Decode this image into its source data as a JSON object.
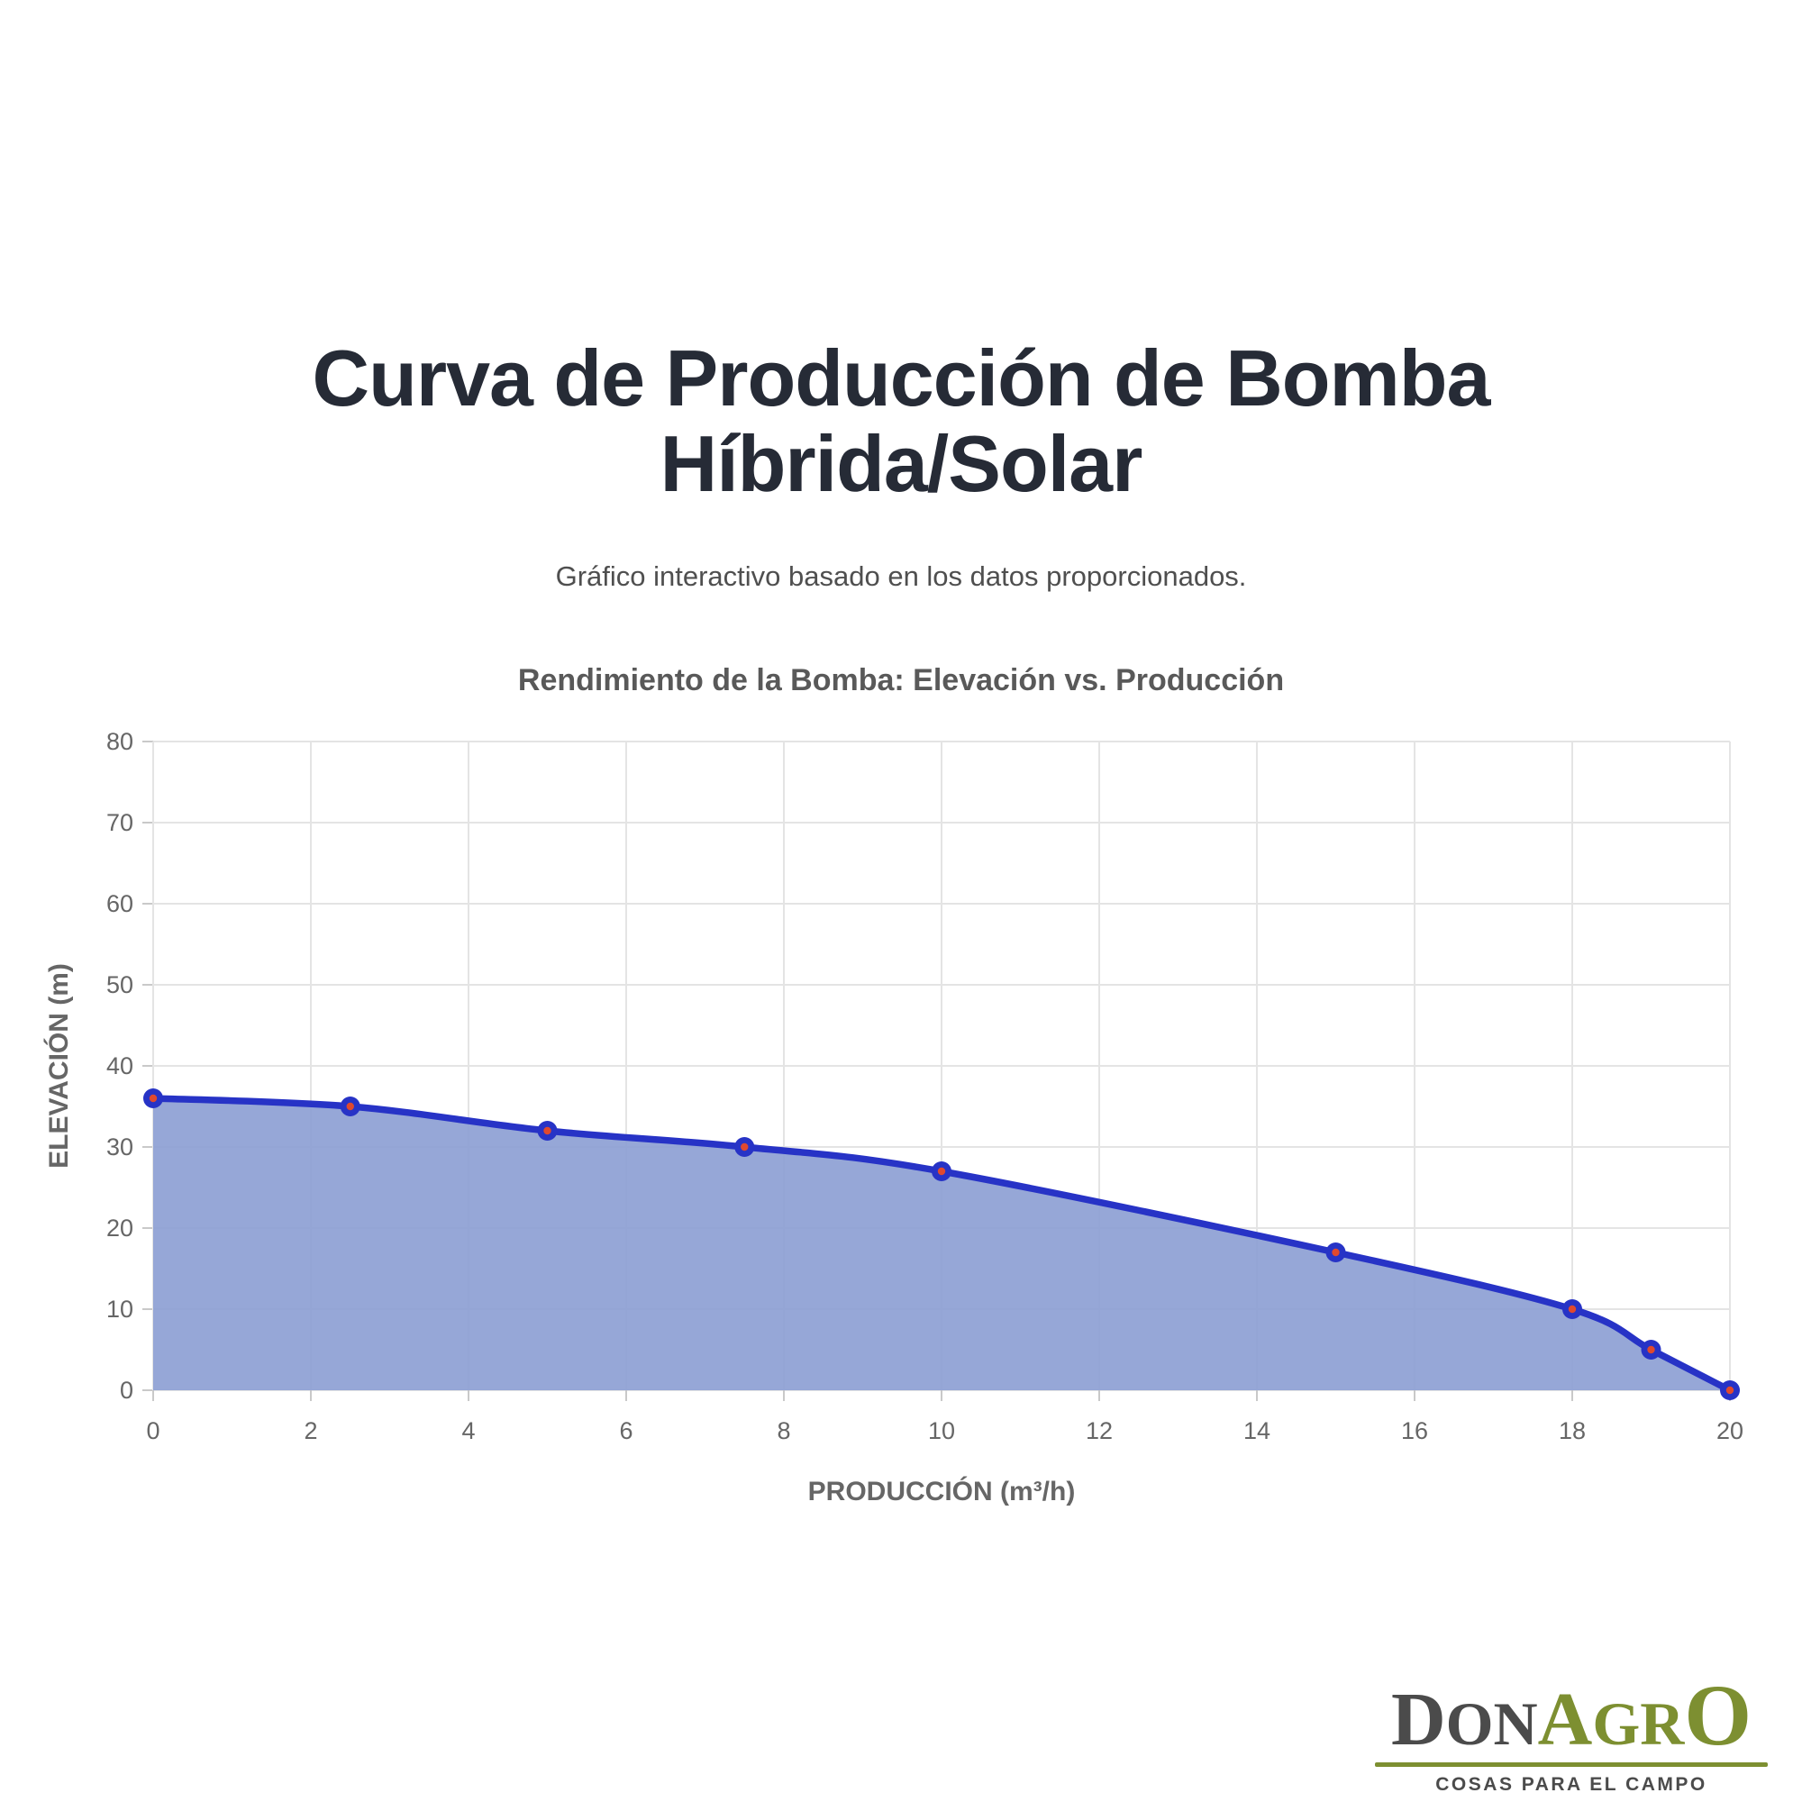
{
  "page": {
    "background": "#ffffff",
    "title_line1": "Curva de Producción de Bomba",
    "title_line2": "Híbrida/Solar",
    "subtitle": "Gráfico interactivo basado en los datos proporcionados."
  },
  "chart_data": {
    "type": "area",
    "title": "Rendimiento de la Bomba: Elevación vs. Producción",
    "xlabel": "PRODUCCIÓN (m³/h)",
    "ylabel": "ELEVACIÓN (m)",
    "x": [
      0,
      2.5,
      5,
      7.5,
      10,
      15,
      18,
      19,
      20
    ],
    "y": [
      36,
      35,
      32,
      30,
      27,
      17,
      10,
      5,
      0
    ],
    "xlim": [
      0,
      20
    ],
    "ylim": [
      0,
      80
    ],
    "xticks": [
      0,
      2,
      4,
      6,
      8,
      10,
      12,
      14,
      16,
      18,
      20
    ],
    "yticks": [
      0,
      10,
      20,
      30,
      40,
      50,
      60,
      70,
      80
    ],
    "grid": true,
    "legend": "none",
    "line_smooth": true,
    "colors": {
      "line": "#2733c6",
      "fill": "#8b9dd3",
      "point_ring": "#2733c6",
      "point_center": "#e0492e",
      "grid": "#e4e4e4",
      "tick": "#c9c9c9",
      "label": "#666666"
    }
  },
  "logo": {
    "segments": [
      {
        "text": "D",
        "size": 84,
        "color": "#4b4b4b"
      },
      {
        "text": "ON",
        "size": 68,
        "color": "#4b4b4b"
      },
      {
        "text": "A",
        "size": 84,
        "color": "#7d8f31"
      },
      {
        "text": "GR",
        "size": 68,
        "color": "#7d8f31"
      },
      {
        "text": "O",
        "size": 96,
        "color": "#7d8f31"
      }
    ],
    "rule_color": "#7d8f31",
    "tagline": "COSAS PARA EL CAMPO"
  }
}
